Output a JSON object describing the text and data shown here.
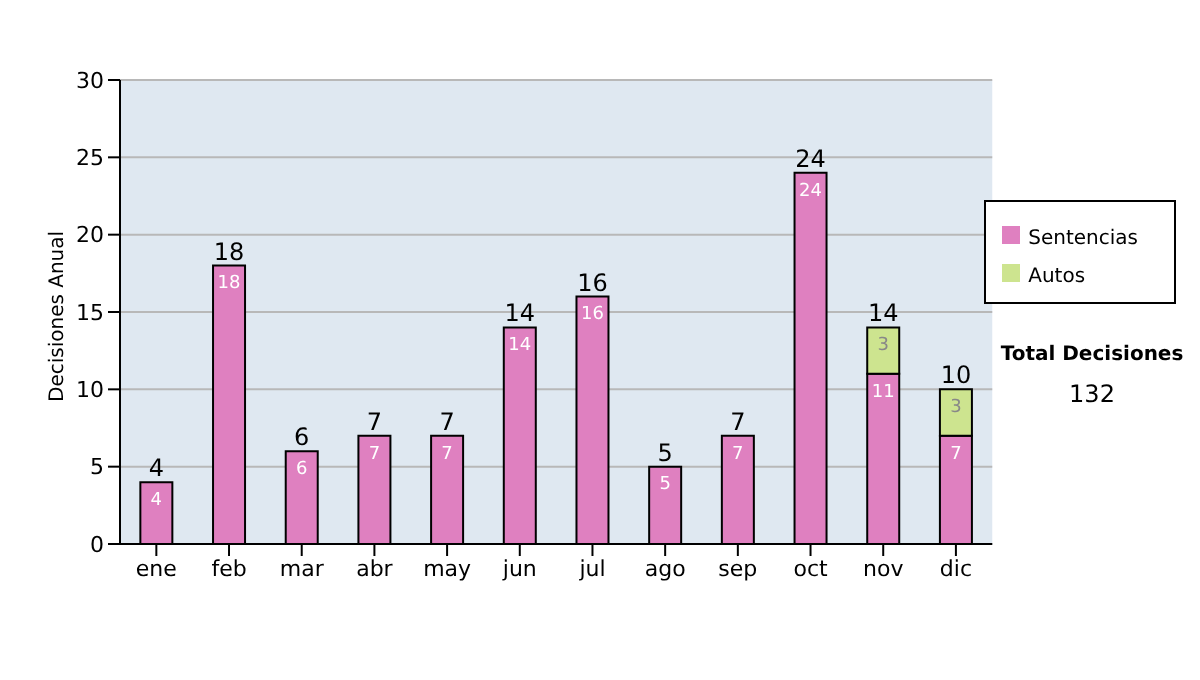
{
  "chart_data": {
    "type": "bar",
    "stacked": true,
    "ylabel": "Decisiones Anual",
    "categories": [
      "ene",
      "feb",
      "mar",
      "abr",
      "may",
      "jun",
      "jul",
      "ago",
      "sep",
      "oct",
      "nov",
      "dic"
    ],
    "series": [
      {
        "name": "Sentencias",
        "color": "#df80c0",
        "values": [
          4,
          18,
          6,
          7,
          7,
          14,
          16,
          5,
          7,
          24,
          11,
          7
        ]
      },
      {
        "name": "Autos",
        "color": "#cde48f",
        "values": [
          null,
          null,
          null,
          null,
          null,
          null,
          null,
          null,
          null,
          null,
          3,
          3
        ]
      }
    ],
    "totals": [
      "4",
      "18",
      "6",
      "7",
      "7",
      "14",
      "16",
      "5",
      "7",
      "24",
      "14",
      "10"
    ],
    "data_labels": true,
    "ylim": [
      0,
      30
    ],
    "yticks": [
      0,
      5,
      10,
      15,
      20,
      25,
      30
    ],
    "grid": "y",
    "legend": "right",
    "annotations": [
      "Total Decisiones",
      "132"
    ]
  }
}
